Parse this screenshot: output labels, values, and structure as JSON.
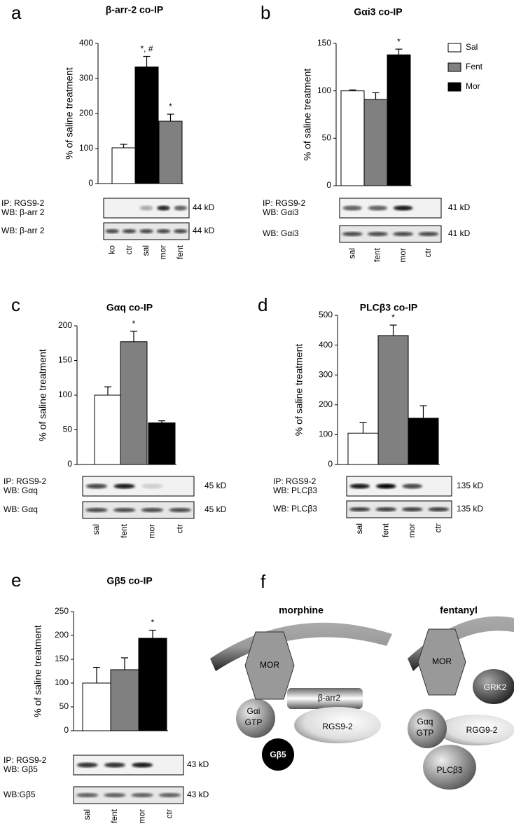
{
  "chart_data": [
    {
      "type": "bar",
      "letter": "a",
      "title": "β-arr-2 co-IP",
      "ylabel": "% of saline treatment",
      "values": [
        102,
        333,
        178
      ],
      "errors": [
        10,
        30,
        20
      ],
      "colors": [
        "#ffffff",
        "#000000",
        "#808080"
      ],
      "annotations": [
        null,
        "*, #",
        "*"
      ],
      "ylim": [
        0,
        400
      ],
      "yticks": [
        0,
        100,
        200,
        300,
        400
      ],
      "blot": {
        "ip": [
          "IP: RGS9-2",
          "WB: β-arr 2"
        ],
        "ip_kd": "44 kD",
        "wb": "WB: β-arr 2",
        "wb_kd": "44 kD",
        "lanes": [
          "ko",
          "ctr",
          "sal",
          "mor",
          "fent"
        ]
      }
    },
    {
      "type": "bar",
      "letter": "b",
      "title": "Gαi3  co-IP",
      "ylabel": "% of saline treatment",
      "values": [
        100,
        91,
        138
      ],
      "errors": [
        1,
        7,
        6
      ],
      "colors": [
        "#ffffff",
        "#808080",
        "#000000"
      ],
      "annotations": [
        null,
        null,
        "*"
      ],
      "ylim": [
        0,
        150
      ],
      "yticks": [
        0,
        50,
        100,
        150
      ],
      "legend": [
        {
          "name": "Sal",
          "color": "#ffffff"
        },
        {
          "name": "Fent",
          "color": "#808080"
        },
        {
          "name": "Mor",
          "color": "#000000"
        }
      ],
      "blot": {
        "ip": [
          "IP: RGS9-2",
          "WB: Gαi3"
        ],
        "ip_kd": "41 kD",
        "wb": "WB: Gαi3",
        "wb_kd": "41 kD",
        "lanes": [
          "sal",
          "fent",
          "mor",
          "ctr"
        ]
      }
    },
    {
      "type": "bar",
      "letter": "c",
      "title": "Gαq  co-IP",
      "ylabel": "% of saline treatment",
      "values": [
        100,
        177,
        60
      ],
      "errors": [
        12,
        15,
        3
      ],
      "colors": [
        "#ffffff",
        "#808080",
        "#000000"
      ],
      "annotations": [
        null,
        "*",
        null
      ],
      "ylim": [
        0,
        200
      ],
      "yticks": [
        0,
        50,
        100,
        150,
        200
      ],
      "blot": {
        "ip": [
          "IP: RGS9-2",
          "WB: Gαq"
        ],
        "ip_kd": "45 kD",
        "wb": "WB: Gαq",
        "wb_kd": "45 kD",
        "lanes": [
          "sal",
          "fent",
          "mor",
          "ctr"
        ]
      }
    },
    {
      "type": "bar",
      "letter": "d",
      "title": "PLCβ3  co-IP",
      "ylabel": "% of saline treatment",
      "values": [
        105,
        432,
        155
      ],
      "errors": [
        35,
        35,
        42
      ],
      "colors": [
        "#ffffff",
        "#808080",
        "#000000"
      ],
      "annotations": [
        null,
        "*",
        null
      ],
      "ylim": [
        0,
        500
      ],
      "yticks": [
        0,
        100,
        200,
        300,
        400,
        500
      ],
      "blot": {
        "ip": [
          "IP: RGS9-2",
          "WB: PLCβ3"
        ],
        "ip_kd": "135 kD",
        "wb": "WB: PLCβ3",
        "wb_kd": "135 kD",
        "lanes": [
          "sal",
          "fent",
          "mor",
          "ctr"
        ]
      }
    },
    {
      "type": "bar",
      "letter": "e",
      "title": "Gβ5  co-IP",
      "ylabel": "% of saline treatment",
      "values": [
        100,
        128,
        194
      ],
      "errors": [
        33,
        25,
        17
      ],
      "colors": [
        "#ffffff",
        "#808080",
        "#000000"
      ],
      "annotations": [
        null,
        null,
        "*"
      ],
      "ylim": [
        0,
        250
      ],
      "yticks": [
        0,
        50,
        100,
        150,
        200,
        250
      ],
      "blot": {
        "ip": [
          "IP: RGS9-2",
          "WB: Gβ5"
        ],
        "ip_kd": "43 kD",
        "wb": "WB:Gβ5",
        "wb_kd": "43 kD",
        "lanes": [
          "sal",
          "fent",
          "mor",
          "ctr"
        ]
      }
    }
  ],
  "diagram": {
    "letter": "f",
    "titles": [
      "morphine",
      "fentanyl"
    ],
    "left": [
      "MOR",
      "β-arr2",
      "Gαi",
      "GTP",
      "RGS9-2",
      "Gβ5"
    ],
    "right": [
      "MOR",
      "GRK2",
      "Gαq",
      "GTP",
      "RGG9-2",
      "PLCβ3"
    ]
  }
}
